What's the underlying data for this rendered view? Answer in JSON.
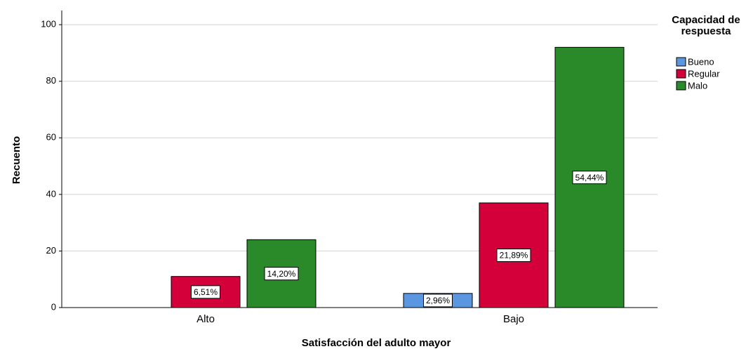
{
  "chart_data": {
    "type": "bar",
    "x_label": "Satisfacción del adulto mayor",
    "y_label": "Recuento",
    "legend_title": "Capacidad de respuesta",
    "categories": [
      "Alto",
      "Bajo"
    ],
    "series": [
      {
        "name": "Bueno",
        "color": "#5b97e0",
        "values": [
          0,
          5
        ],
        "value_labels": [
          null,
          "2,96%"
        ]
      },
      {
        "name": "Regular",
        "color": "#d3003a",
        "values": [
          11,
          37
        ],
        "value_labels": [
          "6,51%",
          "21,89%"
        ]
      },
      {
        "name": "Malo",
        "color": "#2a8a2a",
        "values": [
          24,
          92
        ],
        "value_labels": [
          "14,20%",
          "54,44%"
        ]
      }
    ],
    "ylim": [
      0,
      105
    ],
    "yticks": [
      0,
      20,
      40,
      60,
      80,
      100
    ],
    "grid": true,
    "legend": "right"
  }
}
